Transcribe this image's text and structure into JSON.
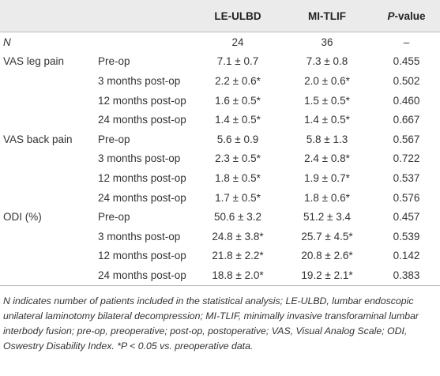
{
  "table": {
    "columns": [
      "LE-ULBD",
      "MI-TLIF",
      "P-value"
    ],
    "n_row": {
      "label": "N",
      "values": [
        "24",
        "36",
        "–"
      ]
    },
    "groups": [
      {
        "name": "VAS leg pain",
        "rows": [
          {
            "label": "Pre-op",
            "values": [
              "7.1 ± 0.7",
              "7.3 ± 0.8",
              "0.455"
            ]
          },
          {
            "label": "3 months post-op",
            "values": [
              "2.2 ± 0.6*",
              "2.0 ± 0.6*",
              "0.502"
            ]
          },
          {
            "label": "12 months post-op",
            "values": [
              "1.6 ± 0.5*",
              "1.5 ± 0.5*",
              "0.460"
            ]
          },
          {
            "label": "24 months post-op",
            "values": [
              "1.4 ± 0.5*",
              "1.4 ± 0.5*",
              "0.667"
            ]
          }
        ]
      },
      {
        "name": "VAS back pain",
        "rows": [
          {
            "label": "Pre-op",
            "values": [
              "5.6 ± 0.9",
              "5.8 ± 1.3",
              "0.567"
            ]
          },
          {
            "label": "3 months post-op",
            "values": [
              "2.3 ± 0.5*",
              "2.4 ± 0.8*",
              "0.722"
            ]
          },
          {
            "label": "12 months post-op",
            "values": [
              "1.8 ± 0.5*",
              "1.9 ± 0.7*",
              "0.537"
            ]
          },
          {
            "label": "24 months post-op",
            "values": [
              "1.7 ± 0.5*",
              "1.8 ± 0.6*",
              "0.576"
            ]
          }
        ]
      },
      {
        "name": "ODI (%)",
        "rows": [
          {
            "label": "Pre-op",
            "values": [
              "50.6 ± 3.2",
              "51.2 ± 3.4",
              "0.457"
            ]
          },
          {
            "label": "3 months post-op",
            "values": [
              "24.8 ± 3.8*",
              "25.7 ± 4.5*",
              "0.539"
            ]
          },
          {
            "label": "12 months post-op",
            "values": [
              "21.8 ± 2.2*",
              "20.8 ± 2.6*",
              "0.142"
            ]
          },
          {
            "label": "24 months post-op",
            "values": [
              "18.8 ± 2.0*",
              "19.2 ± 2.1*",
              "0.383"
            ]
          }
        ]
      }
    ],
    "footnote": "N indicates number of patients included in the statistical analysis; LE-ULBD, lumbar endoscopic unilateral laminotomy bilateral decompression; MI-TLIF, minimally invasive transforaminal lumbar interbody fusion; pre-op, preoperative; post-op, postoperative; VAS, Visual Analog Scale; ODI, Oswestry Disability Index. *P < 0.05 vs. preoperative data."
  }
}
